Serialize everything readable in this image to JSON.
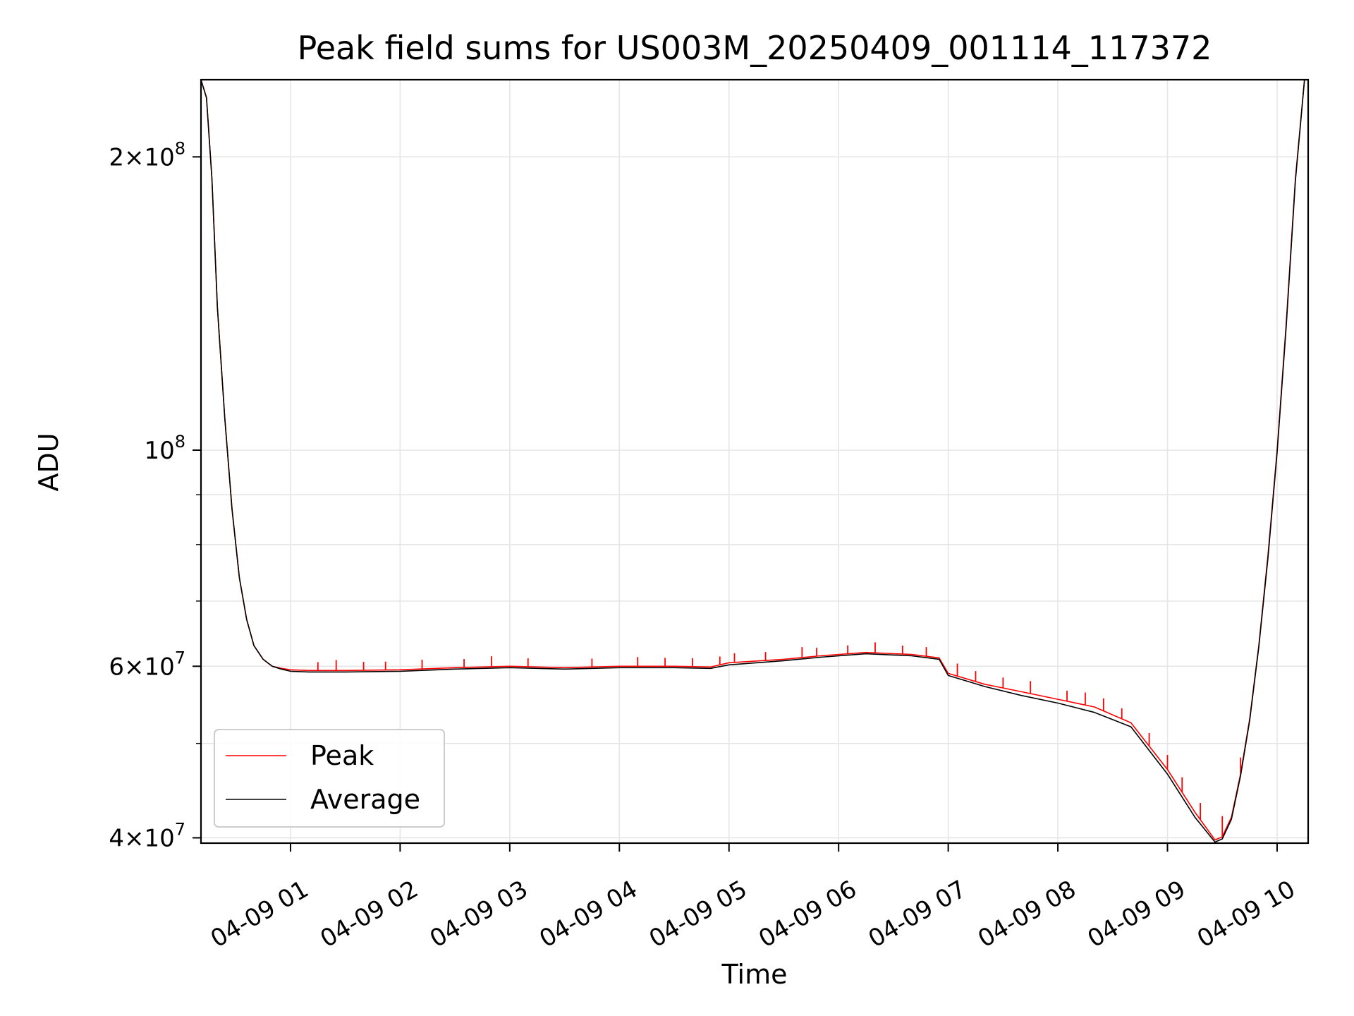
{
  "chart_data": {
    "type": "line",
    "title": "Peak field sums for US003M_20250409_001114_117372",
    "xlabel": "Time",
    "ylabel": "ADU",
    "yscale": "log",
    "xlim": [
      "04-09 00:11",
      "04-09 10:17"
    ],
    "ylim": [
      39500000,
      240000000
    ],
    "grid": true,
    "legend_position": "lower left",
    "x_ticks": [
      "04-09 01",
      "04-09 02",
      "04-09 03",
      "04-09 04",
      "04-09 05",
      "04-09 06",
      "04-09 07",
      "04-09 08",
      "04-09 09",
      "04-09 10"
    ],
    "y_ticks": [
      {
        "value": 40000000,
        "mant": "4",
        "exp": "7"
      },
      {
        "value": 60000000,
        "mant": "6",
        "exp": "7"
      },
      {
        "value": 100000000,
        "mant": "",
        "exp": "8"
      },
      {
        "value": 200000000,
        "mant": "2",
        "exp": "8"
      }
    ],
    "x": [
      "04-09 00:11",
      "04-09 00:14",
      "04-09 00:17",
      "04-09 00:20",
      "04-09 00:24",
      "04-09 00:28",
      "04-09 00:32",
      "04-09 00:36",
      "04-09 00:40",
      "04-09 00:45",
      "04-09 00:50",
      "04-09 00:55",
      "04-09 01:00",
      "04-09 01:10",
      "04-09 01:30",
      "04-09 02:00",
      "04-09 02:30",
      "04-09 03:00",
      "04-09 03:30",
      "04-09 04:00",
      "04-09 04:30",
      "04-09 04:50",
      "04-09 05:00",
      "04-09 05:30",
      "04-09 05:50",
      "04-09 06:15",
      "04-09 06:40",
      "04-09 06:55",
      "04-09 07:00",
      "04-09 07:20",
      "04-09 07:40",
      "04-09 08:00",
      "04-09 08:20",
      "04-09 08:40",
      "04-09 09:00",
      "04-09 09:15",
      "04-09 09:26",
      "04-09 09:30",
      "04-09 09:35",
      "04-09 09:40",
      "04-09 09:45",
      "04-09 09:50",
      "04-09 09:55",
      "04-09 10:00",
      "04-09 10:05",
      "04-09 10:10",
      "04-09 10:15"
    ],
    "series": [
      {
        "name": "Peak",
        "color": "#ff0000",
        "values": [
          240000000,
          230000000,
          190000000,
          140000000,
          108000000,
          87000000,
          74000000,
          67000000,
          63000000,
          61000000,
          60000000,
          59700000,
          59500000,
          59400000,
          59400000,
          59500000,
          59800000,
          60000000,
          59800000,
          60000000,
          60000000,
          59900000,
          60500000,
          61000000,
          61500000,
          62000000,
          61700000,
          61200000,
          59000000,
          57500000,
          56500000,
          55500000,
          54500000,
          52500000,
          47000000,
          42500000,
          39800000,
          40100000,
          42000000,
          46500000,
          53000000,
          63000000,
          78000000,
          100000000,
          135000000,
          190000000,
          240000000
        ]
      },
      {
        "name": "Average",
        "color": "#000000",
        "values": [
          240000000,
          230000000,
          190000000,
          140000000,
          108000000,
          87000000,
          74000000,
          67000000,
          63000000,
          61000000,
          60000000,
          59600000,
          59300000,
          59200000,
          59200000,
          59300000,
          59600000,
          59800000,
          59600000,
          59800000,
          59800000,
          59700000,
          60200000,
          60800000,
          61300000,
          61800000,
          61500000,
          61000000,
          58700000,
          57200000,
          56000000,
          55000000,
          53800000,
          52000000,
          46500000,
          42000000,
          39600000,
          39900000,
          41800000,
          46300000,
          52800000,
          62800000,
          77500000,
          99500000,
          134000000,
          189000000,
          240000000
        ]
      }
    ],
    "spikes": {
      "series": "Peak",
      "x": [
        "04-09 01:15",
        "04-09 01:25",
        "04-09 01:40",
        "04-09 01:52",
        "04-09 02:12",
        "04-09 02:35",
        "04-09 02:50",
        "04-09 03:10",
        "04-09 03:45",
        "04-09 04:10",
        "04-09 04:25",
        "04-09 04:40",
        "04-09 04:55",
        "04-09 05:03",
        "04-09 05:20",
        "04-09 05:40",
        "04-09 05:48",
        "04-09 06:05",
        "04-09 06:20",
        "04-09 06:35",
        "04-09 06:48",
        "04-09 07:05",
        "04-09 07:15",
        "04-09 07:30",
        "04-09 07:45",
        "04-09 08:05",
        "04-09 08:15",
        "04-09 08:25",
        "04-09 08:35",
        "04-09 08:50",
        "04-09 09:00",
        "04-09 09:08",
        "04-09 09:18",
        "04-09 09:30",
        "04-09 09:40"
      ],
      "heights_fraction": [
        0.02,
        0.025,
        0.02,
        0.02,
        0.022,
        0.02,
        0.025,
        0.02,
        0.02,
        0.022,
        0.02,
        0.02,
        0.02,
        0.022,
        0.02,
        0.025,
        0.02,
        0.02,
        0.025,
        0.02,
        0.022,
        0.03,
        0.025,
        0.025,
        0.03,
        0.025,
        0.03,
        0.03,
        0.025,
        0.03,
        0.035,
        0.035,
        0.04,
        0.05,
        0.04
      ]
    }
  }
}
